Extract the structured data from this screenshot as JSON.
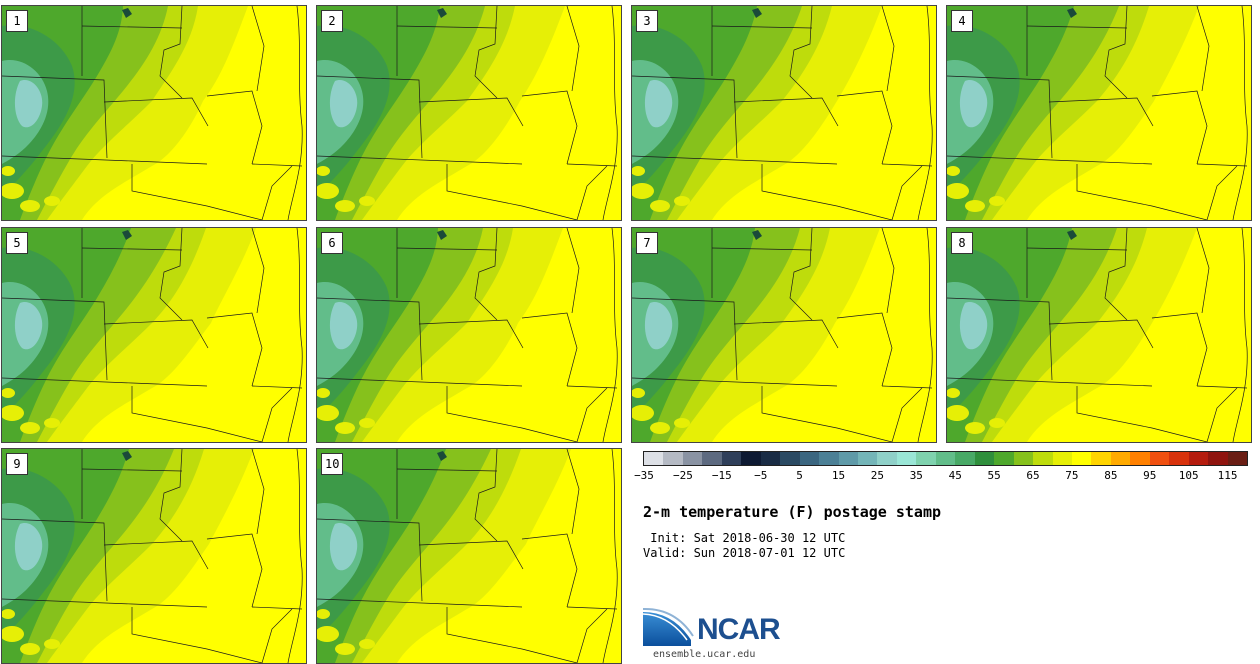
{
  "panels": [
    {
      "label": "1"
    },
    {
      "label": "2"
    },
    {
      "label": "3"
    },
    {
      "label": "4"
    },
    {
      "label": "5"
    },
    {
      "label": "6"
    },
    {
      "label": "7"
    },
    {
      "label": "8"
    },
    {
      "label": "9"
    },
    {
      "label": "10"
    }
  ],
  "colorbar": {
    "ticks": [
      "−35",
      "−25",
      "−15",
      "−5",
      "5",
      "15",
      "25",
      "35",
      "45",
      "55",
      "65",
      "75",
      "85",
      "95",
      "105",
      "115"
    ],
    "colors": [
      "#dde0e6",
      "#b5bac4",
      "#8a93a3",
      "#5d6a80",
      "#2f3f5a",
      "#0e1a33",
      "#1a2c45",
      "#2b4a63",
      "#3b6680",
      "#4c8096",
      "#5f9aa8",
      "#74b5b8",
      "#8fd0c8",
      "#9ae6d6",
      "#7fd2ae",
      "#62bd8a",
      "#48a966",
      "#2f8f3c",
      "#4ea82c",
      "#86c11c",
      "#bedc0c",
      "#e6ef06",
      "#ffff00",
      "#ffd400",
      "#ffaa00",
      "#ff8000",
      "#f05010",
      "#d8320c",
      "#b51c0e",
      "#8f140f",
      "#6a1e14"
    ]
  },
  "title": "2-m temperature (F) postage stamp",
  "init_line": " Init: Sat 2018-06-30 12 UTC",
  "valid_line": "Valid: Sun 2018-07-01 12 UTC",
  "logo": {
    "text": "NCAR",
    "url": "ensemble.ucar.edu"
  }
}
